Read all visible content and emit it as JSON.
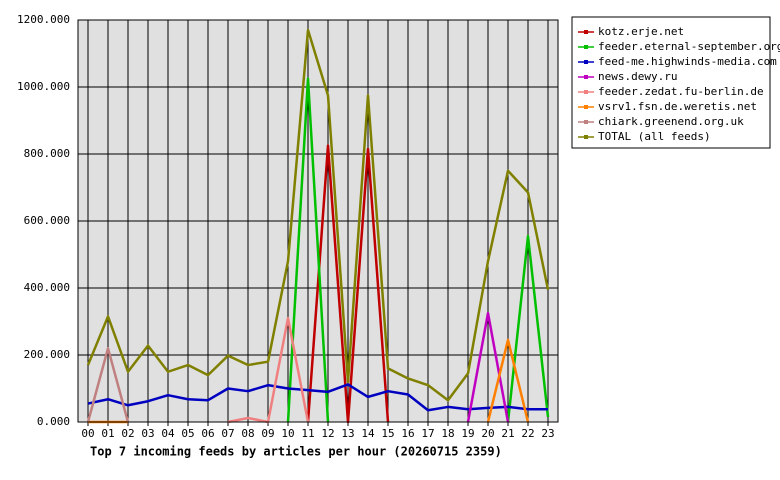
{
  "chart_data": {
    "type": "line",
    "title": "Top 7 incoming feeds by articles per hour (20260715 2359)",
    "categories": [
      "00",
      "01",
      "02",
      "03",
      "04",
      "05",
      "06",
      "07",
      "08",
      "09",
      "10",
      "11",
      "12",
      "13",
      "14",
      "15",
      "16",
      "17",
      "18",
      "19",
      "20",
      "21",
      "22",
      "23"
    ],
    "ylim": [
      0,
      1200
    ],
    "yticks": [
      {
        "value": 0,
        "label": "0.000"
      },
      {
        "value": 200,
        "label": "200.000"
      },
      {
        "value": 400,
        "label": "400.000"
      },
      {
        "value": 600,
        "label": "600.000"
      },
      {
        "value": 800,
        "label": "800.000"
      },
      {
        "value": 1000,
        "label": "1000.000"
      },
      {
        "value": 1200,
        "label": "1200.000"
      }
    ],
    "grid": true,
    "legend": "right",
    "background": "#e0e0e0",
    "series": [
      {
        "name": "kotz.erje.net",
        "color": "#c00000",
        "values": [
          null,
          null,
          null,
          null,
          null,
          null,
          null,
          null,
          null,
          null,
          null,
          0,
          825,
          0,
          815,
          0,
          null,
          null,
          null,
          null,
          null,
          null,
          null,
          null
        ]
      },
      {
        "name": "feeder.eternal-september.org",
        "color": "#00c000",
        "values": [
          null,
          null,
          null,
          null,
          null,
          null,
          null,
          null,
          null,
          null,
          0,
          1025,
          0,
          null,
          null,
          null,
          null,
          null,
          null,
          null,
          null,
          0,
          555,
          15
        ]
      },
      {
        "name": "feed-me.highwinds-media.com",
        "color": "#0000c0",
        "values": [
          55,
          68,
          50,
          62,
          80,
          68,
          65,
          100,
          92,
          110,
          100,
          95,
          90,
          112,
          75,
          92,
          82,
          35,
          45,
          38,
          42,
          45,
          38,
          38
        ]
      },
      {
        "name": "news.dewy.ru",
        "color": "#c000c0",
        "values": [
          null,
          null,
          null,
          null,
          null,
          null,
          null,
          null,
          null,
          null,
          null,
          null,
          null,
          null,
          null,
          null,
          null,
          null,
          null,
          0,
          325,
          0,
          null,
          null
        ]
      },
      {
        "name": "feeder.zedat.fu-berlin.de",
        "color": "#f08080",
        "values": [
          null,
          null,
          null,
          null,
          null,
          null,
          null,
          0,
          12,
          0,
          310,
          0,
          null,
          null,
          null,
          null,
          null,
          null,
          null,
          null,
          null,
          null,
          null,
          null
        ]
      },
      {
        "name": "vsrv1.fsn.de.weretis.net",
        "color": "#ff8000",
        "values": [
          0,
          0,
          0,
          null,
          null,
          null,
          null,
          null,
          null,
          null,
          null,
          null,
          null,
          null,
          null,
          null,
          null,
          null,
          null,
          null,
          0,
          245,
          0,
          null
        ]
      },
      {
        "name": "chiark.greenend.org.uk",
        "color": "#c08080",
        "values": [
          0,
          220,
          0,
          null,
          null,
          null,
          null,
          null,
          null,
          null,
          null,
          null,
          null,
          null,
          null,
          null,
          null,
          null,
          null,
          null,
          null,
          null,
          null,
          null
        ]
      },
      {
        "name": "TOTAL (all feeds)",
        "color": "#808000",
        "values": [
          170,
          315,
          150,
          228,
          150,
          170,
          140,
          198,
          170,
          180,
          480,
          1170,
          975,
          120,
          975,
          160,
          130,
          110,
          65,
          145,
          480,
          750,
          685,
          395
        ]
      }
    ]
  }
}
